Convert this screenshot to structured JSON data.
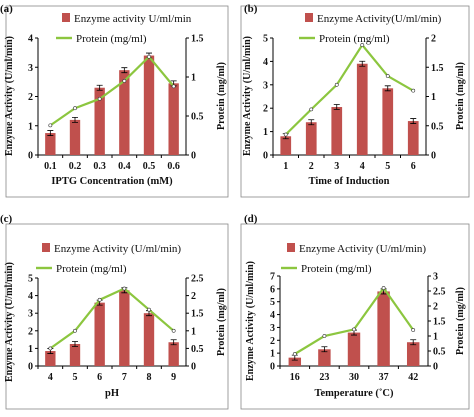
{
  "colors": {
    "bar": "#c0504d",
    "line": "#8cc63f",
    "axis": "#000000",
    "frame": "#888888"
  },
  "chart_data": [
    {
      "panel": "(a)",
      "type": "bar",
      "categories": [
        "0.1",
        "0.2",
        "0.3",
        "0.4",
        "0.5",
        "0.6"
      ],
      "xlabel": "IPTG Concentration (mM)",
      "ylabel": "Enzyme Activity (U/ml/min)",
      "y2label": "Protein (mg/ml)",
      "ylim": [
        0,
        4
      ],
      "yticks": [
        "0",
        "1",
        "2",
        "3",
        "4"
      ],
      "y2lim": [
        0,
        1.5
      ],
      "y2ticks": [
        "0",
        "0.5",
        "1",
        "1.5"
      ],
      "legend": {
        "bar": "Enzyme activity U/ml/min",
        "line": "Protein (mg/ml)"
      },
      "series": [
        {
          "name": "Enzyme activity U/ml/min",
          "type": "bar",
          "axis": "left",
          "values": [
            0.75,
            1.2,
            2.3,
            2.9,
            3.4,
            2.45
          ]
        },
        {
          "name": "Protein (mg/ml)",
          "type": "line",
          "axis": "right",
          "values": [
            0.38,
            0.6,
            0.72,
            0.95,
            1.26,
            0.88
          ]
        }
      ]
    },
    {
      "panel": "(b)",
      "type": "bar",
      "categories": [
        "1",
        "2",
        "3",
        "4",
        "5",
        "6"
      ],
      "xlabel": "Time of Induction",
      "ylabel": "Enzyme Activity (U/ml/min)",
      "y2label": "Protein (mg/ml)",
      "ylim": [
        0,
        5
      ],
      "yticks": [
        "0",
        "1",
        "2",
        "3",
        "4",
        "5"
      ],
      "y2lim": [
        0,
        2
      ],
      "y2ticks": [
        "0",
        "0.5",
        "1",
        "1.5",
        "2"
      ],
      "legend": {
        "bar": "Enzyme Activity(U/ml/min)",
        "line": "Protein (mg/ml)"
      },
      "series": [
        {
          "name": "Enzyme Activity(U/ml/min)",
          "type": "bar",
          "axis": "left",
          "values": [
            0.8,
            1.4,
            2.05,
            3.9,
            2.85,
            1.45
          ]
        },
        {
          "name": "Protein (mg/ml)",
          "type": "line",
          "axis": "right",
          "values": [
            0.35,
            0.78,
            1.2,
            1.88,
            1.35,
            1.1
          ]
        }
      ]
    },
    {
      "panel": "(c)",
      "type": "bar",
      "categories": [
        "4",
        "5",
        "6",
        "7",
        "8",
        "9"
      ],
      "xlabel": "pH",
      "ylabel": "Enzyme Activity (U/ml/min)",
      "y2label": "Protein (mg/ml)",
      "ylim": [
        0,
        5
      ],
      "yticks": [
        "0",
        "1",
        "2",
        "3",
        "4",
        "5"
      ],
      "y2lim": [
        0,
        2.5
      ],
      "y2ticks": [
        "0",
        "0.5",
        "1",
        "1.5",
        "2",
        "2.5"
      ],
      "legend": {
        "bar": "Enzyme Activity (U/ml/min)",
        "line": "Protein (mg/ml)"
      },
      "series": [
        {
          "name": "Enzyme Activity (U/ml/min)",
          "type": "bar",
          "axis": "left",
          "values": [
            0.85,
            1.25,
            3.6,
            4.3,
            3.0,
            1.35
          ]
        },
        {
          "name": "Protein (mg/ml)",
          "type": "line",
          "axis": "right",
          "values": [
            0.5,
            1.0,
            1.88,
            2.2,
            1.6,
            1.0
          ]
        }
      ]
    },
    {
      "panel": "(d)",
      "type": "bar",
      "categories": [
        "16",
        "23",
        "30",
        "37",
        "42"
      ],
      "xlabel": "Temperature (˚C)",
      "ylabel": "Enzyme Activity (U/ml/min)",
      "y2label": "Protein (mg/ml)",
      "ylim": [
        0,
        7
      ],
      "yticks": [
        "0",
        "1",
        "2",
        "3",
        "4",
        "5",
        "6",
        "7"
      ],
      "y2lim": [
        0,
        3
      ],
      "y2ticks": [
        "0",
        "0.5",
        "1",
        "1.5",
        "2",
        "2.5",
        "3"
      ],
      "legend": {
        "bar": "Enzyme Activity (U/ml/min)",
        "line": "Protein (mg/ml)"
      },
      "series": [
        {
          "name": "Enzyme Activity (U/ml/min)",
          "type": "bar",
          "axis": "left",
          "values": [
            0.65,
            1.3,
            2.6,
            5.8,
            1.85
          ]
        },
        {
          "name": "Protein (mg/ml)",
          "type": "line",
          "axis": "right",
          "values": [
            0.4,
            1.0,
            1.22,
            2.6,
            1.2
          ]
        }
      ]
    }
  ]
}
